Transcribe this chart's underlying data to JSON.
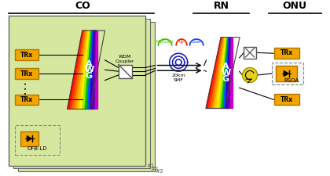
{
  "bg_color": "#ffffff",
  "co_label": "CO",
  "rn_label": "RN",
  "onu_label": "ONU",
  "co_box_color": "#d6e8a0",
  "trx_color": "#f0a500",
  "trx_edge": "#b07800",
  "circulator_color": "#e8d020",
  "fiber_color": "#2222bb",
  "arrow_color": "#111111",
  "signal_colors": [
    "#44bb00",
    "#ee2200",
    "#2244ee"
  ],
  "signal_labels": [
    "Multicast",
    "Up",
    "Down"
  ],
  "smf_label": "20km\nSMF"
}
